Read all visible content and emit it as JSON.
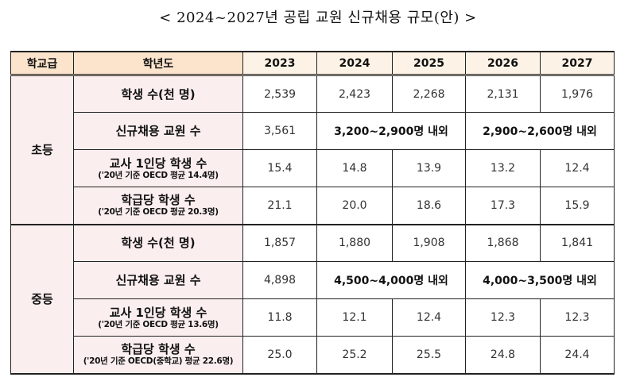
{
  "title": "< 2024~2027년 공립 교원 신규채용 규모(안) >",
  "header": {
    "school_level": "학교급",
    "year_label": "학년도",
    "years": [
      "2023",
      "2024",
      "2025",
      "2026",
      "2027"
    ]
  },
  "sections": [
    {
      "school": "초등",
      "rows": [
        {
          "label": "학생 수(천 명)",
          "sub": "",
          "values": [
            "2,539",
            "2,423",
            "2,268",
            "2,131",
            "1,976"
          ]
        },
        {
          "label": "신규채용 교원 수",
          "sub": "",
          "value_2023": "3,561",
          "range_2024_2025": "3,200~2,900명 내외",
          "range_2026_2027": "2,900~2,600명 내외"
        },
        {
          "label": "교사 1인당 학생 수",
          "sub": "('20년 기준 OECD 평균 14.4명)",
          "values": [
            "15.4",
            "14.8",
            "13.9",
            "13.2",
            "12.4"
          ]
        },
        {
          "label": "학급당 학생 수",
          "sub": "('20년 기준 OECD 평균 20.3명)",
          "values": [
            "21.1",
            "20.0",
            "18.6",
            "17.3",
            "15.9"
          ]
        }
      ]
    },
    {
      "school": "중등",
      "rows": [
        {
          "label": "학생 수(천 명)",
          "sub": "",
          "values": [
            "1,857",
            "1,880",
            "1,908",
            "1,868",
            "1,841"
          ]
        },
        {
          "label": "신규채용 교원 수",
          "sub": "",
          "value_2023": "4,898",
          "range_2024_2025": "4,500~4,000명 내외",
          "range_2026_2027": "4,000~3,500명 내외"
        },
        {
          "label": "교사 1인당 학생 수",
          "sub": "('20년 기준 OECD 평균 13.6명)",
          "values": [
            "11.8",
            "12.1",
            "12.4",
            "12.3",
            "12.3"
          ]
        },
        {
          "label": "학급당 학생 수",
          "sub": "('20년 기준 OECD(중학교) 평균 22.6명)",
          "values": [
            "25.0",
            "25.2",
            "25.5",
            "24.8",
            "24.4"
          ]
        }
      ]
    }
  ]
}
